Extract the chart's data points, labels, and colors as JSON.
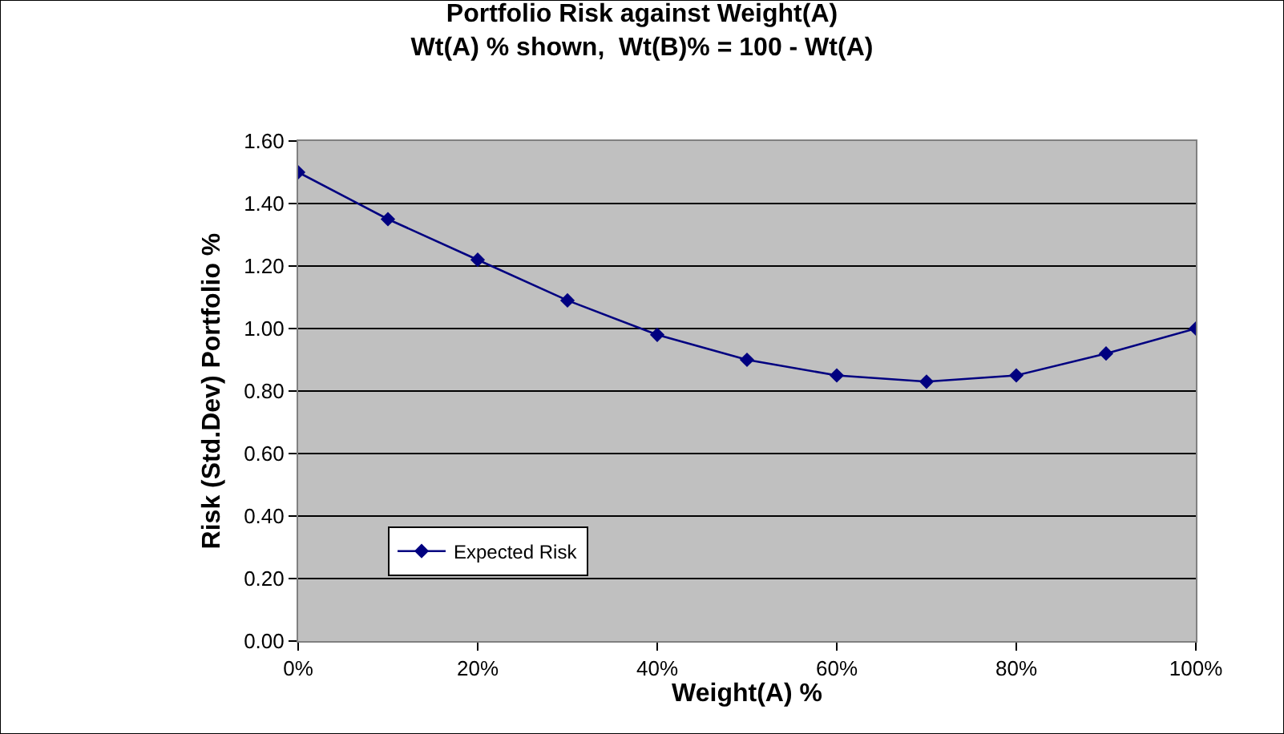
{
  "chart_data": {
    "type": "line",
    "title": "Portfolio Risk against Weight(A)",
    "subtitle": "Wt(A) % shown,  Wt(B)% = 100 - Wt(A)",
    "xlabel": "Weight(A) %",
    "ylabel": "Risk (Std.Dev) Portfolio %",
    "x": [
      0,
      10,
      20,
      30,
      40,
      50,
      60,
      70,
      80,
      90,
      100
    ],
    "series": [
      {
        "name": "Expected Risk",
        "color": "#000080",
        "values": [
          1.5,
          1.35,
          1.22,
          1.09,
          0.98,
          0.9,
          0.85,
          0.83,
          0.85,
          0.92,
          1.0
        ]
      }
    ],
    "xlim": [
      0,
      100
    ],
    "xticks": [
      {
        "value": 0,
        "label": "0%"
      },
      {
        "value": 20,
        "label": "20%"
      },
      {
        "value": 40,
        "label": "40%"
      },
      {
        "value": 60,
        "label": "60%"
      },
      {
        "value": 80,
        "label": "80%"
      },
      {
        "value": 100,
        "label": "100%"
      }
    ],
    "ylim": [
      0,
      1.6
    ],
    "yticks": [
      {
        "value": 0,
        "label": "0.00"
      },
      {
        "value": 0.2,
        "label": "0.20"
      },
      {
        "value": 0.4,
        "label": "0.40"
      },
      {
        "value": 0.6,
        "label": "0.60"
      },
      {
        "value": 0.8,
        "label": "0.80"
      },
      {
        "value": 1.0,
        "label": "1.00"
      },
      {
        "value": 1.2,
        "label": "1.20"
      },
      {
        "value": 1.4,
        "label": "1.40"
      },
      {
        "value": 1.6,
        "label": "1.60"
      }
    ],
    "grid": "y",
    "legend": "bottom left",
    "marker": "diamond",
    "line_style": "solid"
  }
}
